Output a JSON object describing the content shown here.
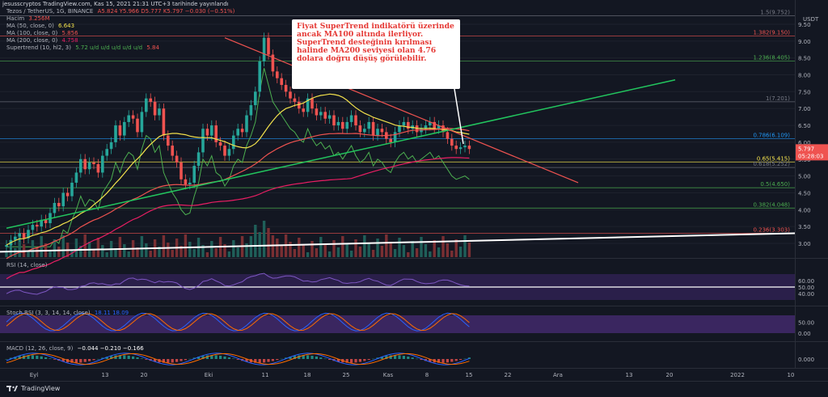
{
  "header": "jesusscryptos TradingView.com, Kas 15, 2021 21:31 UTC+3 tarihinde yayınlandı",
  "legend": {
    "symbol": "Tezos / TetherUS, 1G, BINANCE",
    "ohlc": "A5.824  Y5.966  D5.777  K5.797  −0.030 (−0.51%)",
    "volume_label": "Hacim",
    "volume_value": "3.256M",
    "ma50_label": "MA (50, close, 0)",
    "ma50_value": "6.643",
    "ma100_label": "MA (100, close, 0)",
    "ma100_value": "5.856",
    "ma200_label": "MA (200, close, 0)",
    "ma200_value": "4.758",
    "supertrend_label": "Supertrend (10, hl2, 3)",
    "supertrend_values": "5.72  u/d  u/d  u/d  u/d  u/d",
    "supertrend_value2": "5.84"
  },
  "callout": "Fiyat SuperTrend indikatörü üzerinde ancak MA100 altında ilerliyor. SuperTrend desteğinin kırılması halinde MA200 seviyesi olan 4.76 dolara doğru düşüş görülebilir.",
  "rsi_label": "RSI (14, close)",
  "stoch_label": "Stoch RSI (3, 3, 14, 14, close)",
  "stoch_values": "18.11  18.09",
  "macd_label": "MACD (12, 26, close, 9)",
  "macd_values": "−0.044  −0.210  −0.166",
  "brand": "TradingView",
  "colors": {
    "bg": "#131722",
    "up": "#26a69a",
    "down": "#ef5350",
    "ma50": "#f2e14c",
    "ma100": "#ef5350",
    "ma200": "#e91e63",
    "supertrend": "#4caf50",
    "rsi": "#7e57c2",
    "stoch_k": "#2962ff",
    "stoch_d": "#ff6d00"
  },
  "chart_data": {
    "type": "candlestick",
    "currency": "USDT",
    "y_ticks": [
      3.0,
      3.5,
      4.0,
      4.5,
      5.0,
      5.5,
      6.0,
      6.5,
      7.0,
      7.5,
      8.0,
      8.5,
      9.0,
      9.5
    ],
    "x_ticks": [
      "Eyl",
      "13",
      "20",
      "Eki",
      "11",
      "18",
      "25",
      "Kas",
      "8",
      "15",
      "22",
      "Ara",
      "13",
      "20",
      "2022",
      "10"
    ],
    "fib_levels": [
      {
        "label": "1.5(9.752)",
        "value": 9.752
      },
      {
        "label": "1.382(9.150)",
        "value": 9.15
      },
      {
        "label": "1.236(8.405)",
        "value": 8.405
      },
      {
        "label": "1(7.201)",
        "value": 7.201
      },
      {
        "label": "0.786(6.109)",
        "value": 6.109
      },
      {
        "label": "0.65(5.415)",
        "value": 5.415
      },
      {
        "label": "0.618(5.252)",
        "value": 5.252
      },
      {
        "label": "0.5(4.650)",
        "value": 4.65
      },
      {
        "label": "0.382(4.048)",
        "value": 4.048
      },
      {
        "label": "0.236(3.303)",
        "value": 3.303
      }
    ],
    "last_price": "5.797",
    "countdown": "05:28:03",
    "closes": [
      2.95,
      3.1,
      3.2,
      3.3,
      3.15,
      3.4,
      3.55,
      3.5,
      3.7,
      3.6,
      3.9,
      4.2,
      4.1,
      4.5,
      4.4,
      4.8,
      5.1,
      5.5,
      5.2,
      5.4,
      5.35,
      5.1,
      5.6,
      5.8,
      6.0,
      6.5,
      6.2,
      6.6,
      6.8,
      6.7,
      6.3,
      6.9,
      7.3,
      7.2,
      6.8,
      7.0,
      6.2,
      5.9,
      5.6,
      5.4,
      4.9,
      4.75,
      4.8,
      5.3,
      5.7,
      6.4,
      6.2,
      6.5,
      6.0,
      5.9,
      5.6,
      5.8,
      6.2,
      6.4,
      6.3,
      6.8,
      7.1,
      7.5,
      8.4,
      9.1,
      8.6,
      8.1,
      7.9,
      7.7,
      7.5,
      7.3,
      7.2,
      7.0,
      6.9,
      7.3,
      7.0,
      6.8,
      6.9,
      6.7,
      6.8,
      6.5,
      6.6,
      6.4,
      6.6,
      6.8,
      6.5,
      6.3,
      6.4,
      6.6,
      6.2,
      6.4,
      6.3,
      6.1,
      6.0,
      6.3,
      6.5,
      6.6,
      6.4,
      6.5,
      6.3,
      6.4,
      6.5,
      6.6,
      6.4,
      6.5,
      6.3,
      6.1,
      5.9,
      5.8,
      5.85,
      5.9,
      5.8
    ],
    "rsi_levels": [
      40,
      50,
      60
    ],
    "stoch_levels": [
      0,
      50
    ],
    "macd_levels": [
      0
    ]
  }
}
